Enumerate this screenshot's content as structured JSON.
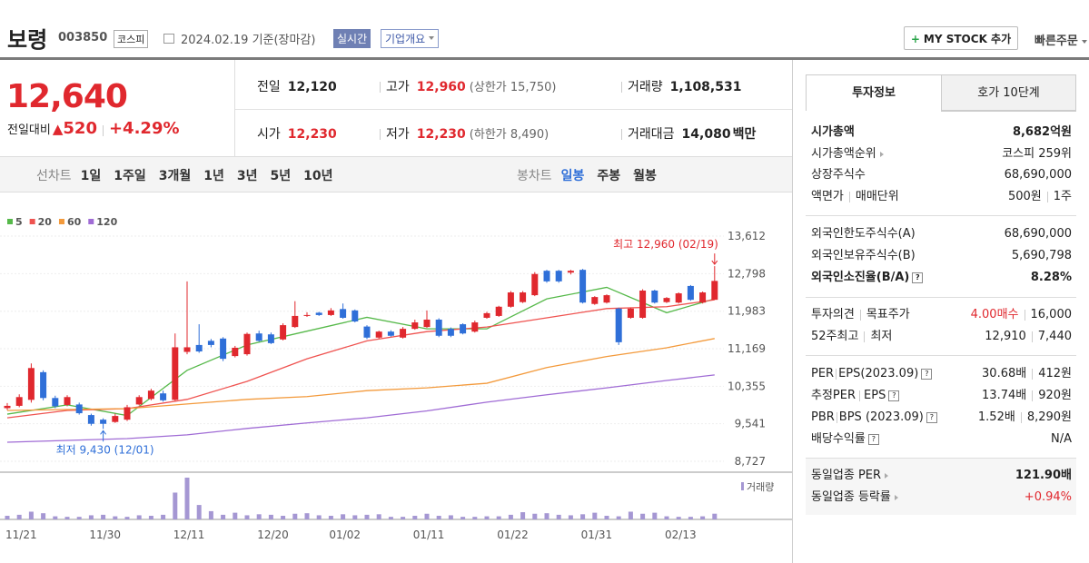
{
  "header": {
    "name": "보령",
    "code": "003850",
    "market": "코스피",
    "date": "2024.02.19 기준(장마감)",
    "realtime": "실시간",
    "overview": "기업개요",
    "mystock": "MY STOCK 추가",
    "quick_order": "빠른주문"
  },
  "price": {
    "current": "12,640",
    "change_label": "전일대비",
    "change": "520",
    "rate": "+4.29%"
  },
  "quote": {
    "prev_label": "전일",
    "prev": "12,120",
    "high_label": "고가",
    "high": "12,960",
    "upper_limit": "(상한가 15,750)",
    "volume_label": "거래량",
    "volume": "1,108,531",
    "open_label": "시가",
    "open": "12,230",
    "low_label": "저가",
    "low": "12,230",
    "lower_limit": "(하한가 8,490)",
    "amount_label": "거래대금",
    "amount": "14,080",
    "amount_unit": "백만"
  },
  "periods": {
    "line_label": "선차트",
    "line": [
      "1일",
      "1주일",
      "3개월",
      "1년",
      "3년",
      "5년",
      "10년"
    ],
    "candle_label": "봉차트",
    "candle": [
      "일봉",
      "주봉",
      "월봉"
    ]
  },
  "chart_data": {
    "type": "candlestick",
    "categories": [
      "11/21",
      null,
      null,
      null,
      null,
      null,
      null,
      "11/30",
      null,
      null,
      null,
      null,
      null,
      null,
      "12/11",
      null,
      null,
      null,
      null,
      null,
      null,
      "12/20",
      null,
      null,
      null,
      null,
      null,
      "01/02",
      null,
      null,
      null,
      null,
      null,
      null,
      "01/11",
      null,
      null,
      null,
      null,
      null,
      null,
      "01/22",
      null,
      null,
      null,
      null,
      null,
      null,
      "01/31",
      null,
      null,
      null,
      null,
      null,
      null,
      "02/13",
      null,
      null,
      null,
      null
    ],
    "open": [
      9880,
      9930,
      10060,
      10660,
      10100,
      9950,
      9960,
      9730,
      9630,
      9580,
      9630,
      9960,
      10080,
      10200,
      10060,
      11100,
      11250,
      11340,
      11390,
      11010,
      11050,
      11500,
      11480,
      11370,
      11640,
      11880,
      11950,
      11900,
      12030,
      12000,
      11650,
      11410,
      11540,
      11410,
      11600,
      11640,
      11800,
      11600,
      11700,
      11540,
      11840,
      11880,
      12080,
      12180,
      12330,
      12860,
      12860,
      12820,
      12880,
      12140,
      12170,
      12040,
      11840,
      11840,
      12430,
      12180,
      12170,
      12530,
      12170,
      12230
    ],
    "high": [
      9990,
      10180,
      10850,
      10700,
      10150,
      10160,
      10000,
      9760,
      9660,
      9760,
      9950,
      10160,
      10300,
      10260,
      11500,
      12630,
      11700,
      11380,
      11420,
      11230,
      11520,
      11560,
      11520,
      11720,
      12200,
      11960,
      11970,
      12050,
      12150,
      12020,
      11680,
      11560,
      11570,
      11640,
      11800,
      12000,
      11830,
      11630,
      11720,
      11780,
      11970,
      12100,
      12420,
      12420,
      12830,
      12880,
      12880,
      12880,
      12900,
      12310,
      12350,
      12060,
      12060,
      12460,
      12450,
      12290,
      12390,
      12550,
      12410,
      12960
    ],
    "low": [
      9840,
      9900,
      10000,
      10050,
      9880,
      9920,
      9740,
      9500,
      9430,
      9560,
      9600,
      9940,
      10050,
      10020,
      10040,
      11050,
      11080,
      11200,
      10900,
      10980,
      11020,
      11320,
      11270,
      11350,
      11620,
      11860,
      11880,
      11880,
      11820,
      11740,
      11380,
      11390,
      11430,
      11390,
      11580,
      11620,
      11420,
      11420,
      11480,
      11520,
      11820,
      11860,
      12060,
      12160,
      12310,
      12600,
      12600,
      12780,
      12150,
      12120,
      12150,
      11250,
      11820,
      11820,
      12150,
      12160,
      12150,
      12210,
      12150,
      12230
    ],
    "close": [
      9930,
      10120,
      10750,
      10100,
      9920,
      10120,
      9770,
      9540,
      9540,
      9710,
      9900,
      10120,
      10260,
      10050,
      11200,
      11200,
      11110,
      11250,
      10950,
      11190,
      11490,
      11340,
      11290,
      11680,
      11880,
      11900,
      11900,
      12000,
      11840,
      11760,
      11410,
      11540,
      11450,
      11600,
      11740,
      11800,
      11450,
      11450,
      11500,
      11740,
      11940,
      12080,
      12390,
      12390,
      12790,
      12630,
      12630,
      12860,
      12170,
      12290,
      12330,
      11310,
      12040,
      12430,
      12170,
      12270,
      12370,
      12230,
      12390,
      12640
    ],
    "volume": [
      700000,
      900000,
      1500000,
      1200000,
      600000,
      500000,
      500000,
      800000,
      900000,
      600000,
      500000,
      800000,
      700000,
      900000,
      5200000,
      8100000,
      2800000,
      1600000,
      900000,
      1300000,
      800000,
      1000000,
      900000,
      700000,
      1100000,
      1200000,
      800000,
      700000,
      1000000,
      800000,
      900000,
      1000000,
      500000,
      500000,
      700000,
      1100000,
      700000,
      800000,
      500000,
      500000,
      600000,
      600000,
      900000,
      1400000,
      1100000,
      1200000,
      900000,
      800000,
      1000000,
      1300000,
      700000,
      600000,
      1500000,
      1100000,
      1300000,
      600000,
      500000,
      500000,
      600000,
      1108531
    ],
    "up_color": "#e0282e",
    "down_color": "#2f6fd8",
    "volume_color": "#a597d3",
    "volume_label": "거래량",
    "moving_averages": [
      {
        "name": "5",
        "color": "#56b94a",
        "x": [
          0,
          5,
          10,
          15,
          20,
          25,
          30,
          35,
          40,
          45,
          50,
          55,
          59
        ],
        "values": [
          9750,
          9950,
          9720,
          10700,
          11250,
          11550,
          11850,
          11600,
          11600,
          12250,
          12500,
          11950,
          12250
        ]
      },
      {
        "name": "20",
        "color": "#ef5350",
        "x": [
          0,
          5,
          10,
          15,
          20,
          25,
          30,
          35,
          40,
          45,
          50,
          55,
          59
        ],
        "values": [
          9670,
          9830,
          9870,
          10070,
          10460,
          10950,
          11340,
          11540,
          11640,
          11840,
          12040,
          12080,
          12230
        ]
      },
      {
        "name": "60",
        "color": "#f39a3c",
        "x": [
          0,
          5,
          10,
          15,
          20,
          25,
          30,
          35,
          40,
          45,
          50,
          55,
          59
        ],
        "values": [
          9830,
          9850,
          9870,
          9970,
          10070,
          10130,
          10260,
          10320,
          10420,
          10760,
          11000,
          11190,
          11390
        ]
      },
      {
        "name": "120",
        "color": "#a06cd5",
        "x": [
          0,
          5,
          10,
          15,
          20,
          25,
          30,
          35,
          40,
          45,
          50,
          55,
          59
        ],
        "values": [
          9140,
          9180,
          9220,
          9300,
          9440,
          9560,
          9670,
          9820,
          10010,
          10170,
          10320,
          10480,
          10600
        ]
      }
    ],
    "ylim": [
      8727,
      13612
    ],
    "yticks": [
      {
        "value": 13612,
        "label": "13,612"
      },
      {
        "value": 12798,
        "label": "12,798"
      },
      {
        "value": 11983,
        "label": "11,983"
      },
      {
        "value": 11169,
        "label": "11,169"
      },
      {
        "value": 10355,
        "label": "10,355"
      },
      {
        "value": 9541,
        "label": "9,541"
      },
      {
        "value": 8727,
        "label": "8,727"
      }
    ],
    "grid": true,
    "annotations": {
      "high": "최고 12,960 (02/19)",
      "low": "최저 9,430 (12/01)"
    }
  },
  "info": {
    "tabs": [
      "투자정보",
      "호가 10단계"
    ],
    "market_cap_label": "시가총액",
    "market_cap": "8,682억원",
    "rank_label": "시가총액순위",
    "rank": "코스피 259위",
    "shares_label": "상장주식수",
    "shares": "68,690,000",
    "par_label": [
      "액면가",
      "매매단위"
    ],
    "par": [
      "500원",
      "1주"
    ],
    "foreign_limit_label": "외국인한도주식수(A)",
    "foreign_limit": "68,690,000",
    "foreign_hold_label": "외국인보유주식수(B)",
    "foreign_hold": "5,690,798",
    "foreign_ratio_label": "외국인소진율(B/A)",
    "foreign_ratio": "8.28%",
    "opinion_label": [
      "투자의견",
      "목표주가"
    ],
    "opinion": [
      "4.00매수",
      "16,000"
    ],
    "w52_label": [
      "52주최고",
      "최저"
    ],
    "w52": [
      "12,910",
      "7,440"
    ],
    "per_label": [
      "PER",
      "EPS(2023.09)"
    ],
    "per": [
      "30.68배",
      "412원"
    ],
    "est_per_label": [
      "추정PER",
      "EPS"
    ],
    "est_per": [
      "13.74배",
      "920원"
    ],
    "pbr_label": [
      "PBR",
      "BPS (2023.09)"
    ],
    "pbr": [
      "1.52배",
      "8,290원"
    ],
    "dividend_label": "배당수익률",
    "dividend": "N/A",
    "sector_per_label": "동일업종 PER",
    "sector_per": "121.90배",
    "sector_rate_label": "동일업종 등락률",
    "sector_rate": "+0.94%"
  }
}
